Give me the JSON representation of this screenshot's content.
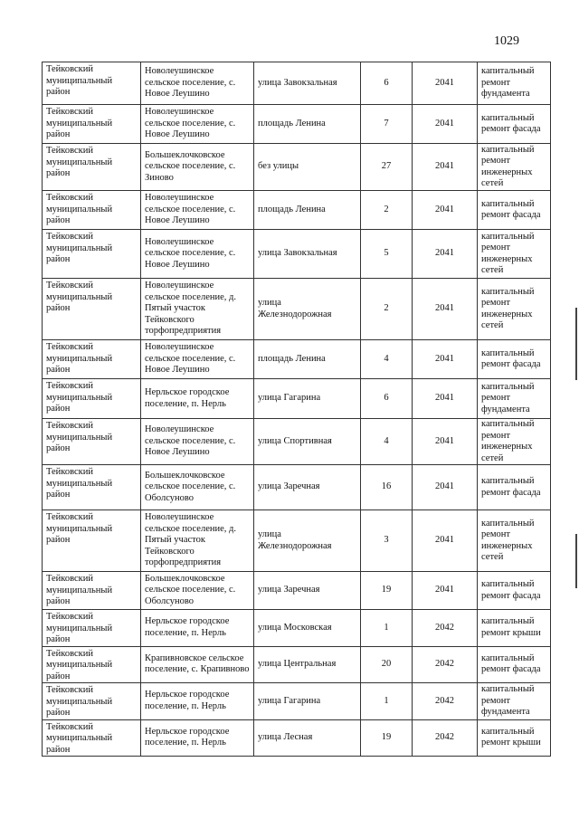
{
  "page_number": "1029",
  "rows": [
    {
      "district": "Тейковский муниципальный район",
      "settlement": "Новолеушинское сельское поселение, с. Новое Леушино",
      "street": "улица Завокзальная",
      "house": "6",
      "year": "2041",
      "work": "капитальный ремонт фундамента"
    },
    {
      "district": "Тейковский муниципальный район",
      "settlement": "Новолеушинское сельское поселение, с. Новое Леушино",
      "street": "площадь Ленина",
      "house": "7",
      "year": "2041",
      "work": "капитальный ремонт фасада"
    },
    {
      "district": "Тейковский муниципальный район",
      "settlement": "Большеклочковское сельское поселение, с. Зиново",
      "street": "без улицы",
      "house": "27",
      "year": "2041",
      "work": "капитальный ремонт инженерных сетей"
    },
    {
      "district": "Тейковский муниципальный район",
      "settlement": "Новолеушинское сельское поселение, с. Новое Леушино",
      "street": "площадь Ленина",
      "house": "2",
      "year": "2041",
      "work": "капитальный ремонт фасада"
    },
    {
      "district": "Тейковский муниципальный район",
      "settlement": "Новолеушинское сельское поселение, с. Новое Леушино",
      "street": "улица Завокзальная",
      "house": "5",
      "year": "2041",
      "work": "капитальный ремонт инженерных сетей"
    },
    {
      "district": "Тейковский муниципальный район",
      "settlement": "Новолеушинское сельское поселение, д. Пятый участок Тейковского торфопредприятия",
      "street": "улица Железнодорожная",
      "house": "2",
      "year": "2041",
      "work": "капитальный ремонт инженерных сетей"
    },
    {
      "district": "Тейковский муниципальный район",
      "settlement": "Новолеушинское сельское поселение, с. Новое Леушино",
      "street": "площадь Ленина",
      "house": "4",
      "year": "2041",
      "work": "капитальный ремонт фасада"
    },
    {
      "district": "Тейковский муниципальный район",
      "settlement": "Нерльское городское поселение, п. Нерль",
      "street": "улица Гагарина",
      "house": "6",
      "year": "2041",
      "work": "капитальный ремонт фундамента"
    },
    {
      "district": "Тейковский муниципальный район",
      "settlement": "Новолеушинское сельское поселение, с. Новое Леушино",
      "street": "улица Спортивная",
      "house": "4",
      "year": "2041",
      "work": "капитальный ремонт инженерных сетей"
    },
    {
      "district": "Тейковский муниципальный район",
      "settlement": "Большеклочковское сельское поселение, с. Оболсуново",
      "street": "улица Заречная",
      "house": "16",
      "year": "2041",
      "work": "капитальный ремонт фасада"
    },
    {
      "district": "Тейковский муниципальный район",
      "settlement": "Новолеушинское сельское поселение, д. Пятый участок Тейковского торфопредприятия",
      "street": "улица Железнодорожная",
      "house": "3",
      "year": "2041",
      "work": "капитальный ремонт инженерных сетей"
    },
    {
      "district": "Тейковский муниципальный район",
      "settlement": "Большеклочковское сельское поселение, с. Оболсуново",
      "street": "улица Заречная",
      "house": "19",
      "year": "2041",
      "work": "капитальный ремонт фасада"
    },
    {
      "district": "Тейковский муниципальный район",
      "settlement": "Нерльское городское поселение, п. Нерль",
      "street": "улица Московская",
      "house": "1",
      "year": "2042",
      "work": "капитальный ремонт крыши"
    },
    {
      "district": "Тейковский муниципальный район",
      "settlement": "Крапивновское сельское поселение, с. Крапивново",
      "street": "улица Центральная",
      "house": "20",
      "year": "2042",
      "work": "капитальный ремонт фасада"
    },
    {
      "district": "Тейковский муниципальный район",
      "settlement": "Нерльское городское поселение, п. Нерль",
      "street": "улица Гагарина",
      "house": "1",
      "year": "2042",
      "work": "капитальный ремонт фундамента"
    },
    {
      "district": "Тейковский муниципальный район",
      "settlement": "Нерльское городское поселение, п. Нерль",
      "street": "улица Лесная",
      "house": "19",
      "year": "2042",
      "work": "капитальный ремонт крыши"
    }
  ]
}
